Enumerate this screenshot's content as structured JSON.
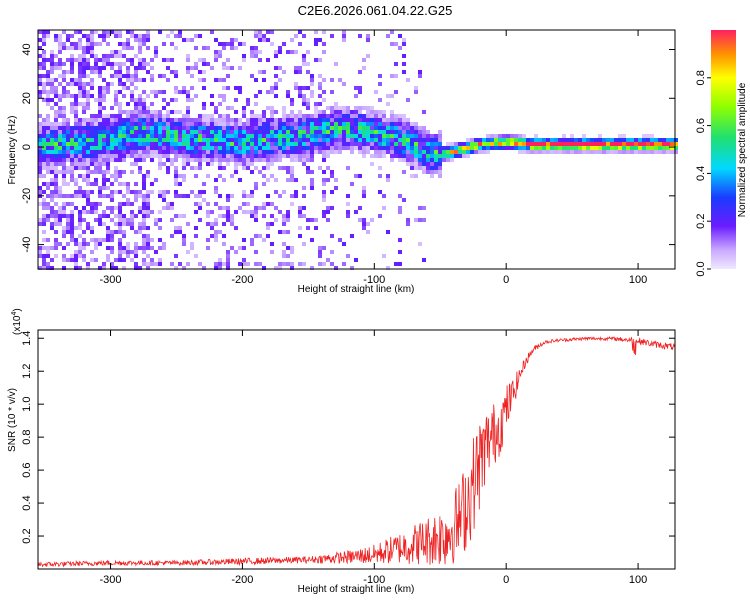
{
  "title": "C2E6.2026.061.04.22.G25",
  "chart_data": [
    {
      "type": "heatmap",
      "title": "C2E6.2026.061.04.22.G25",
      "xlabel": "Height of straight line (km)",
      "ylabel": "Frequency (Hz)",
      "xlim": [
        -355,
        128
      ],
      "ylim": [
        -50,
        48
      ],
      "xticks": [
        -300,
        -200,
        -100,
        0,
        100
      ],
      "yticks": [
        -40,
        -20,
        0,
        20,
        40
      ],
      "description_points": {
        "ridge_height_km": [
          -340,
          -300,
          -280,
          -250,
          -200,
          -150,
          -125,
          -100,
          -75,
          -55,
          -40,
          -20,
          0,
          20,
          50,
          90,
          100,
          128
        ],
        "ridge_frequency_hz": [
          1,
          3,
          6,
          4,
          2,
          5,
          8,
          6,
          2,
          -3,
          -2,
          1,
          2,
          1,
          1,
          1,
          1,
          1
        ]
      },
      "colorbar": {
        "label": "Normalized spectral amplitude",
        "range": [
          0,
          1
        ],
        "ticks": [
          0.0,
          0.2,
          0.4,
          0.6,
          0.8
        ]
      }
    },
    {
      "type": "line",
      "xlabel": "Height of straight line (km)",
      "ylabel": "SNR (10 * v/v)",
      "scale_label": "(x10",
      "scale_exponent": "4",
      "xlim": [
        -355,
        128
      ],
      "ylim": [
        0.0,
        1.45
      ],
      "xticks": [
        -300,
        -200,
        -100,
        0,
        100
      ],
      "yticks": [
        0.2,
        0.4,
        0.6,
        0.8,
        1.0,
        1.2,
        1.4
      ],
      "series": [
        {
          "name": "SNR",
          "color": "#ee2222",
          "x": [
            -355,
            -300,
            -250,
            -200,
            -150,
            -120,
            -100,
            -80,
            -60,
            -45,
            -35,
            -28,
            -22,
            -15,
            -10,
            -5,
            0,
            5,
            10,
            15,
            20,
            25,
            30,
            40,
            60,
            80,
            100,
            110,
            128
          ],
          "y": [
            0.03,
            0.04,
            0.04,
            0.05,
            0.06,
            0.08,
            0.1,
            0.15,
            0.2,
            0.25,
            0.35,
            0.5,
            0.65,
            0.8,
            0.85,
            0.9,
            1.0,
            1.08,
            1.18,
            1.27,
            1.33,
            1.36,
            1.38,
            1.39,
            1.4,
            1.4,
            1.39,
            1.37,
            1.35
          ],
          "noise_amplitude": [
            0.015,
            0.015,
            0.015,
            0.02,
            0.02,
            0.04,
            0.06,
            0.1,
            0.15,
            0.2,
            0.25,
            0.3,
            0.3,
            0.22,
            0.2,
            0.18,
            0.15,
            0.1,
            0.05,
            0.03,
            0.02,
            0.015,
            0.01,
            0.01,
            0.01,
            0.01,
            0.02,
            0.02,
            0.02
          ]
        }
      ]
    }
  ],
  "colors": {
    "line": "#ee2222",
    "axis": "#000000"
  }
}
